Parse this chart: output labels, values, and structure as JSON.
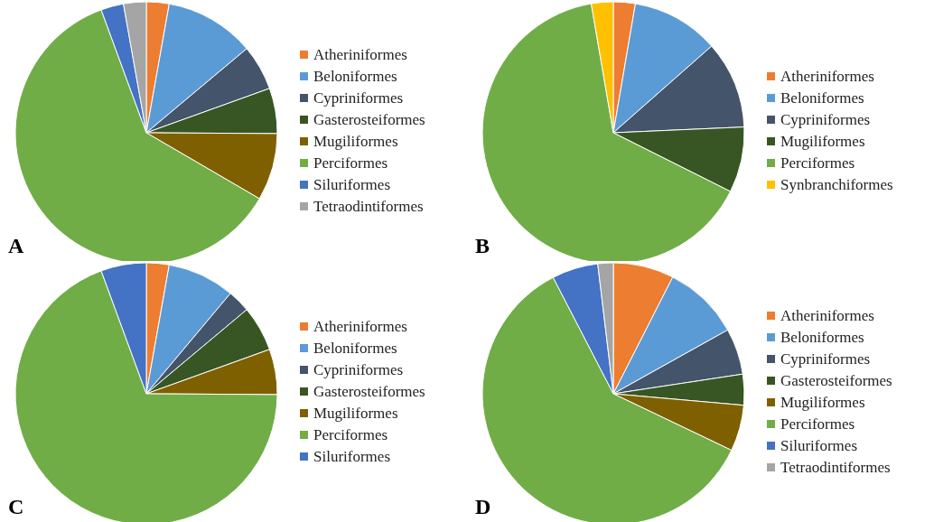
{
  "chart_data": [
    {
      "type": "pie",
      "title": "A",
      "legend": "right",
      "categories": [
        "Atheriniformes",
        "Beloniformes",
        "Cypriniformes",
        "Gasterosteiformes",
        "Mugiliformes",
        "Perciformes",
        "Siluriformes",
        "Tetraodintiformes"
      ],
      "values": [
        2.8,
        11.1,
        5.6,
        5.6,
        8.3,
        61.0,
        2.8,
        2.8
      ],
      "colors": [
        "#ed7d31",
        "#5b9bd5",
        "#44546a",
        "#375623",
        "#7f6000",
        "#70ad47",
        "#4472c4",
        "#a5a5a5"
      ]
    },
    {
      "type": "pie",
      "title": "B",
      "legend": "right",
      "categories": [
        "Atheriniformes",
        "Beloniformes",
        "Cypriniformes",
        "Mugiliformes",
        "Perciformes",
        "Synbranchiformes"
      ],
      "values": [
        2.7,
        10.8,
        10.8,
        8.1,
        64.9,
        2.7
      ],
      "colors": [
        "#ed7d31",
        "#5b9bd5",
        "#44546a",
        "#375623",
        "#70ad47",
        "#ffc000"
      ]
    },
    {
      "type": "pie",
      "title": "C",
      "legend": "right",
      "categories": [
        "Atheriniformes",
        "Beloniformes",
        "Cypriniformes",
        "Gasterosteiformes",
        "Mugiliformes",
        "Perciformes",
        "Siluriformes"
      ],
      "values": [
        2.8,
        8.3,
        2.8,
        5.6,
        5.6,
        69.3,
        5.6
      ],
      "colors": [
        "#ed7d31",
        "#5b9bd5",
        "#44546a",
        "#375623",
        "#7f6000",
        "#70ad47",
        "#4472c4"
      ]
    },
    {
      "type": "pie",
      "title": "D",
      "legend": "right",
      "categories": [
        "Atheriniformes",
        "Beloniformes",
        "Cypriniformes",
        "Gasterosteiformes",
        "Mugiliformes",
        "Perciformes",
        "Siluriformes",
        "Tetraodintiformes"
      ],
      "values": [
        7.5,
        9.4,
        5.7,
        3.8,
        5.7,
        60.3,
        5.7,
        1.9
      ],
      "colors": [
        "#ed7d31",
        "#5b9bd5",
        "#44546a",
        "#375623",
        "#7f6000",
        "#70ad47",
        "#4472c4",
        "#a5a5a5"
      ]
    }
  ]
}
